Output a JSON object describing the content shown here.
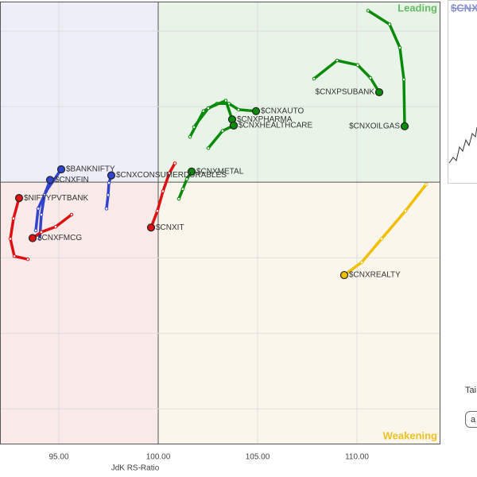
{
  "chart_data": {
    "type": "scatter",
    "x_label": "JdK RS-Ratio",
    "quadrant_labels": {
      "leading": "Leading",
      "weakening": "Weakening"
    },
    "xlim": [
      92.04,
      114.16
    ],
    "xticks": [
      {
        "value": 95,
        "label": "95.00"
      },
      {
        "value": 100,
        "label": "100.00"
      },
      {
        "value": 105,
        "label": "105.00"
      },
      {
        "value": 110,
        "label": "110.00"
      }
    ],
    "ylim": [
      96.54,
      102.39
    ],
    "yticks": [
      97,
      98,
      99,
      100,
      101,
      102
    ],
    "grid": true,
    "series": [
      {
        "name": "$CNXOILGAS",
        "color": "#0a8a0a",
        "x": [
          110.56,
          111.64,
          112.16,
          112.36,
          112.4
        ],
        "y": [
          102.27,
          102.09,
          101.78,
          101.36,
          100.74
        ]
      },
      {
        "name": "$CNXPSUBANK",
        "color": "#0a8a0a",
        "x": [
          107.84,
          109.0,
          110.04,
          110.68,
          111.12
        ],
        "y": [
          101.37,
          101.61,
          101.55,
          101.38,
          101.19
        ]
      },
      {
        "name": "$CNXAUTO",
        "color": "#0a8a0a",
        "x": [
          101.6,
          102.28,
          102.96,
          103.56,
          104.04,
          104.92
        ],
        "y": [
          100.6,
          100.94,
          101.04,
          101.04,
          100.96,
          100.94
        ]
      },
      {
        "name": "$CNXPHARMA",
        "color": "#0a8a0a",
        "x": [
          101.8,
          102.52,
          103.4,
          103.72
        ],
        "y": [
          100.73,
          100.98,
          101.08,
          100.83
        ]
      },
      {
        "name": "$CNXHEALTHCARE",
        "color": "#0a8a0a",
        "x": [
          102.52,
          103.24,
          103.8
        ],
        "y": [
          100.45,
          100.68,
          100.75
        ]
      },
      {
        "name": "$CNXMETAL",
        "color": "#0a8a0a",
        "x": [
          101.04,
          101.24,
          101.44,
          101.68
        ],
        "y": [
          99.78,
          99.91,
          100.04,
          100.14
        ]
      },
      {
        "name": "$CNXIT",
        "color": "#dd1111",
        "x": [
          100.84,
          100.56,
          100.24,
          99.96,
          99.64
        ],
        "y": [
          100.25,
          100.12,
          99.88,
          99.62,
          99.4
        ]
      },
      {
        "name": "$CNXCONSUMERDURABLES",
        "color": "#3344cc",
        "x": [
          97.4,
          97.48,
          97.52,
          97.64
        ],
        "y": [
          99.65,
          99.83,
          99.99,
          100.09
        ]
      },
      {
        "name": "$BANKNIFTY",
        "color": "#3344cc",
        "x": [
          93.84,
          93.96,
          94.36,
          95.12
        ],
        "y": [
          99.36,
          99.65,
          99.88,
          100.17
        ]
      },
      {
        "name": "$CNXFIN",
        "color": "#3344cc",
        "x": [
          94.04,
          94.12,
          94.28,
          94.56
        ],
        "y": [
          99.25,
          99.57,
          99.83,
          100.03
        ]
      },
      {
        "name": "$NIFTYPVTBANK",
        "color": "#dd1111",
        "x": [
          93.44,
          92.76,
          92.56,
          92.72,
          93.0
        ],
        "y": [
          98.98,
          99.02,
          99.25,
          99.52,
          99.79
        ]
      },
      {
        "name": "$CNXFMCG",
        "color": "#dd1111",
        "x": [
          95.64,
          94.84,
          94.12,
          93.68
        ],
        "y": [
          99.57,
          99.41,
          99.34,
          99.26
        ]
      },
      {
        "name": "$CNXREALTY",
        "color": "#f0c000",
        "x": [
          113.48,
          112.44,
          111.24,
          110.24,
          109.36
        ],
        "y": [
          99.97,
          99.62,
          99.25,
          98.94,
          98.77
        ]
      }
    ]
  },
  "side_panel": {
    "title": "$CNX",
    "tail_label": "Tai",
    "button": "a"
  }
}
